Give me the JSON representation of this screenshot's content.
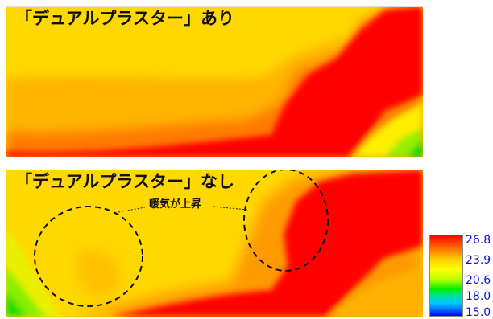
{
  "panels": [
    {
      "title": "「デュアルプラスター」あり"
    },
    {
      "title": "「デュアルプラスター」なし",
      "callout": "暖気が上昇"
    }
  ],
  "chart_data": {
    "type": "heatmap",
    "colorbar": {
      "labels": [
        "26.8",
        "23.9",
        "20.6",
        "18.0",
        "15.0"
      ],
      "values": [
        26.8,
        23.9,
        20.6,
        18.0,
        15.0
      ],
      "colors": [
        "#ff0000",
        "#ffff00",
        "#00ee00",
        "#00c8ff",
        "#0000ff"
      ]
    },
    "panels": [
      {
        "name": "「デュアルプラスター」あり",
        "description_levels": {
          "background": 23.9,
          "hot_region": 26.8,
          "cool_corner": 20.6
        }
      },
      {
        "name": "「デュアルプラスター」なし",
        "description_levels": {
          "background": 23.9,
          "hot_region": 26.8,
          "cool_corner": 20.6
        },
        "annotated_regions": 2
      }
    ]
  }
}
